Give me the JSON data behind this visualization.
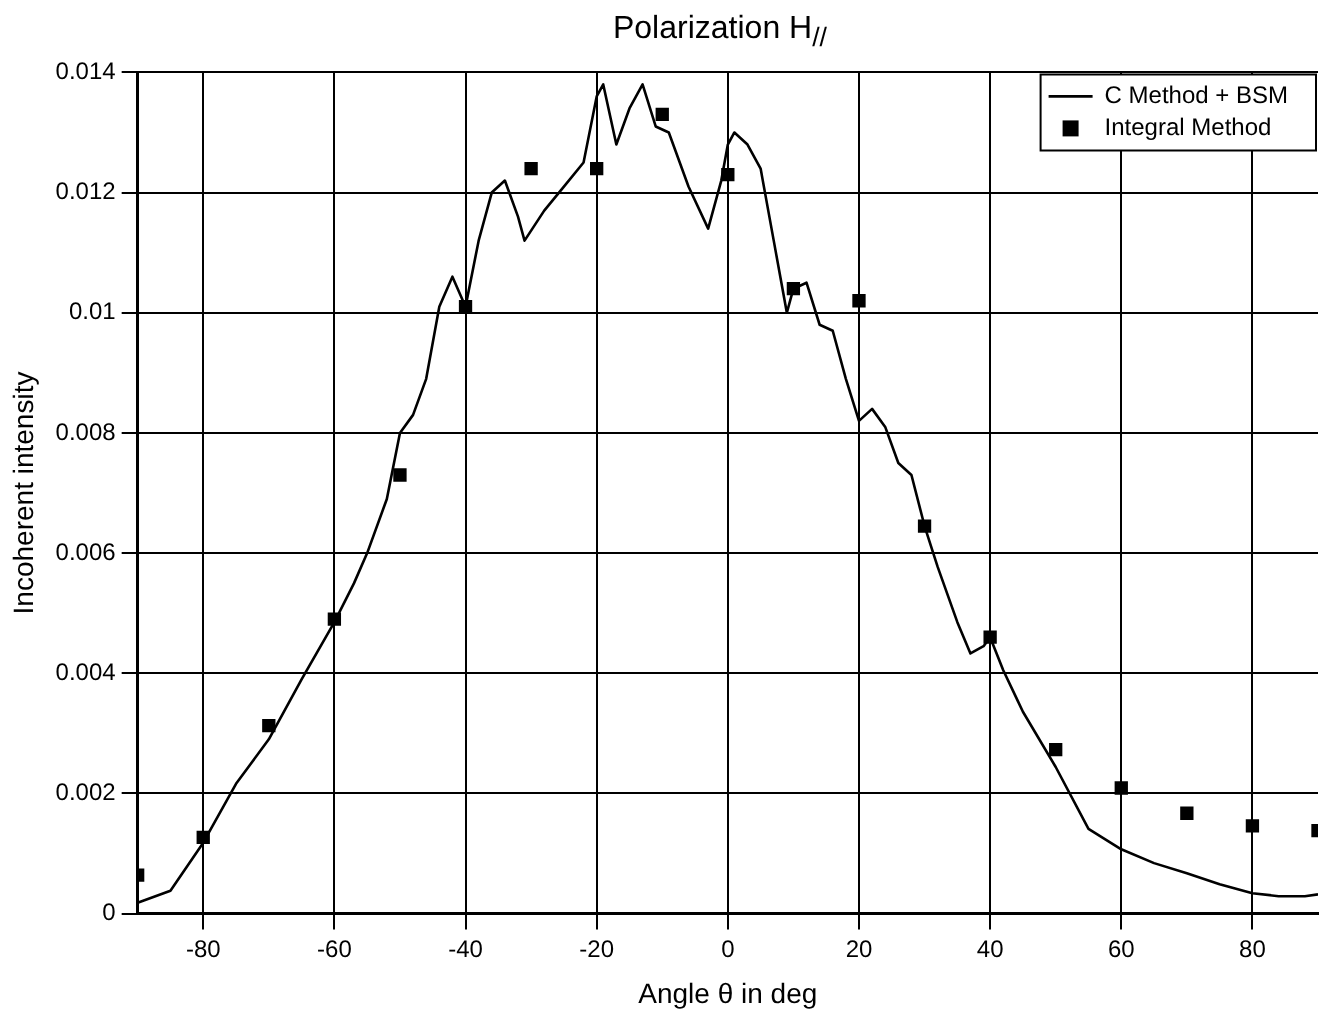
{
  "chart_data": {
    "type": "line",
    "title": "Polarization H$_{//}$",
    "xlabel": "Angle θ in deg",
    "ylabel": "Incoherent intensity",
    "xlim": [
      -90,
      90
    ],
    "xticks": [
      -80,
      -60,
      -40,
      -20,
      0,
      20,
      40,
      60,
      80
    ],
    "ylim": [
      0,
      0.014
    ],
    "yticks": [
      0,
      0.002,
      0.004,
      0.006,
      0.008,
      0.01,
      0.012,
      0.014
    ],
    "grid": true,
    "legend": "top right",
    "series": [
      {
        "name": "C Method + BSM",
        "color": "#000000",
        "marker": "none",
        "x": [
          -90,
          -85,
          -80,
          -75,
          -70,
          -65,
          -60,
          -57,
          -55,
          -52,
          -50,
          -48,
          -46,
          -44,
          -42,
          -40,
          -38,
          -36,
          -34,
          -32,
          -31,
          -28,
          -25,
          -22,
          -20,
          -19,
          -17,
          -15,
          -13,
          -11,
          -9,
          -6,
          -3,
          -1,
          0,
          1,
          3,
          5,
          7,
          9,
          10,
          12,
          14,
          16,
          18,
          20,
          22,
          24,
          26,
          28,
          30,
          32,
          35,
          37,
          39,
          40,
          42,
          45,
          50,
          55,
          60,
          65,
          70,
          75,
          80,
          84,
          88,
          90
        ],
        "values": [
          0.00018,
          0.00038,
          0.00118,
          0.00216,
          0.0029,
          0.0039,
          0.00485,
          0.0055,
          0.006,
          0.0069,
          0.008,
          0.0083,
          0.0089,
          0.0101,
          0.0106,
          0.0101,
          0.0112,
          0.012,
          0.0122,
          0.0116,
          0.0112,
          0.0117,
          0.0121,
          0.0125,
          0.0136,
          0.0138,
          0.0128,
          0.0134,
          0.0138,
          0.0131,
          0.013,
          0.0121,
          0.0114,
          0.0122,
          0.0128,
          0.013,
          0.0128,
          0.0124,
          0.0112,
          0.01,
          0.0104,
          0.0105,
          0.0098,
          0.0097,
          0.0089,
          0.0082,
          0.0084,
          0.0081,
          0.0075,
          0.0073,
          0.00645,
          0.00577,
          0.00485,
          0.00433,
          0.00445,
          0.0046,
          0.00405,
          0.00336,
          0.00244,
          0.00141,
          0.00107,
          0.00084,
          0.00067,
          0.00049,
          0.00034,
          0.00029,
          0.00029,
          0.00032
        ]
      },
      {
        "name": "Integral Method",
        "type": "scatter",
        "color": "#000000",
        "marker": "square",
        "x": [
          -90,
          -80,
          -70,
          -60,
          -50,
          -40,
          -30,
          -20,
          -10,
          0,
          10,
          20,
          30,
          40,
          50,
          60,
          70,
          80,
          90
        ],
        "values": [
          0.00064,
          0.00127,
          0.00313,
          0.0049,
          0.0073,
          0.0101,
          0.0124,
          0.0124,
          0.0133,
          0.0123,
          0.0104,
          0.0102,
          0.00645,
          0.0046,
          0.00273,
          0.00209,
          0.00167,
          0.00146,
          0.00138
        ]
      }
    ]
  }
}
